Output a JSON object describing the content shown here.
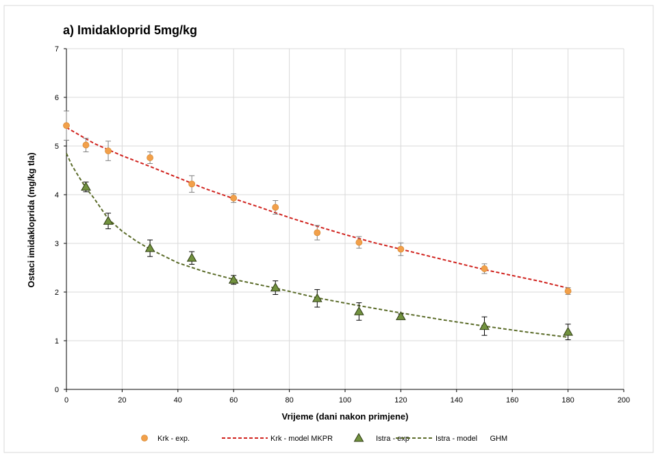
{
  "chart_data": {
    "type": "scatter",
    "title": "a) Imidakloprid  5mg/kg",
    "xlabel": "Vrijeme (dani nakon primjene)",
    "ylabel": "Ostaci imidakloprida (mg/kg tla)",
    "xlim": [
      0,
      200
    ],
    "ylim": [
      0,
      7
    ],
    "xticks": [
      0,
      20,
      40,
      60,
      80,
      100,
      120,
      140,
      160,
      180,
      200
    ],
    "yticks": [
      0,
      1,
      2,
      3,
      4,
      5,
      6,
      7
    ],
    "grid": true,
    "legend_position": "bottom",
    "legend": [
      {
        "label": "Krk - exp."
      },
      {
        "label": "Krk - model MKPR"
      },
      {
        "label": "Istra - exp"
      },
      {
        "label": "Istra - model      GHM"
      }
    ],
    "series": [
      {
        "kind": "points",
        "marker": "circle",
        "color": "#f2a04a",
        "x": [
          0,
          7,
          15,
          30,
          45,
          60,
          75,
          90,
          105,
          120,
          150,
          180
        ],
        "y": [
          5.42,
          5.02,
          4.9,
          4.76,
          4.22,
          3.93,
          3.74,
          3.22,
          3.02,
          2.88,
          2.48,
          2.02
        ],
        "err": [
          0.3,
          0.14,
          0.2,
          0.12,
          0.17,
          0.09,
          0.14,
          0.15,
          0.12,
          0.13,
          0.1,
          0.07
        ]
      },
      {
        "kind": "line",
        "style": "dashed",
        "color": "#d0211c",
        "x": [
          0,
          10,
          20,
          30,
          40,
          50,
          60,
          70,
          80,
          90,
          100,
          110,
          120,
          130,
          140,
          150,
          160,
          170,
          180
        ],
        "y": [
          5.38,
          5.05,
          4.8,
          4.58,
          4.35,
          4.12,
          3.92,
          3.73,
          3.53,
          3.35,
          3.18,
          3.02,
          2.88,
          2.74,
          2.6,
          2.46,
          2.34,
          2.22,
          2.08
        ]
      },
      {
        "kind": "points",
        "marker": "triangle",
        "color": "#72923f",
        "x": [
          7,
          15,
          30,
          45,
          60,
          75,
          90,
          105,
          120,
          150,
          180
        ],
        "y": [
          4.16,
          3.46,
          2.9,
          2.7,
          2.25,
          2.09,
          1.87,
          1.6,
          1.5,
          1.3,
          1.18
        ],
        "err": [
          0.1,
          0.16,
          0.17,
          0.13,
          0.09,
          0.14,
          0.18,
          0.18,
          0.05,
          0.19,
          0.16
        ]
      },
      {
        "kind": "line",
        "style": "dashed",
        "color": "#5a6b28",
        "x": [
          0,
          2,
          5,
          7,
          10,
          15,
          20,
          25,
          30,
          40,
          50,
          60,
          75,
          90,
          105,
          120,
          135,
          150,
          165,
          180
        ],
        "y": [
          4.85,
          4.6,
          4.32,
          4.14,
          3.92,
          3.5,
          3.25,
          3.05,
          2.88,
          2.6,
          2.41,
          2.26,
          2.08,
          1.88,
          1.72,
          1.57,
          1.43,
          1.3,
          1.18,
          1.07
        ]
      }
    ]
  }
}
